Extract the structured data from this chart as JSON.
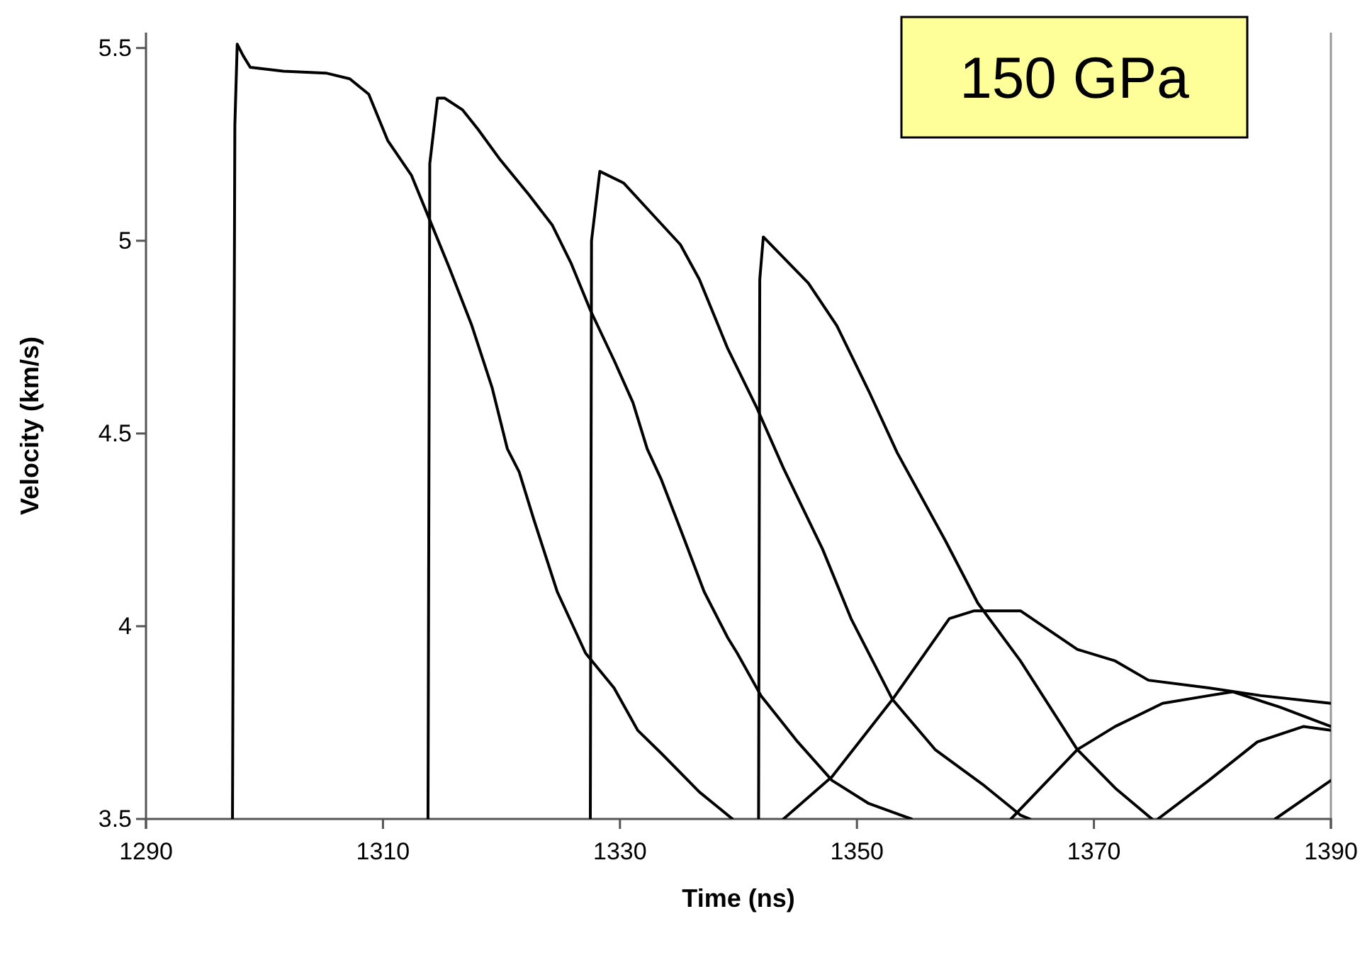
{
  "chart_data": {
    "type": "line",
    "xlabel": "Time (ns)",
    "ylabel": "Velocity (km/s)",
    "annotations": [
      "150 GPa"
    ],
    "xlim": [
      1290,
      1390
    ],
    "xticks": [
      1290,
      1310,
      1330,
      1350,
      1370,
      1390
    ],
    "ylim": [
      3.5,
      5.54
    ],
    "yticks": [
      3.5,
      {
        "value": 4,
        "label": "4"
      },
      4.5,
      {
        "value": 5,
        "label": "5"
      },
      5.5
    ],
    "grid": false,
    "marker": "none",
    "line_style": "solid",
    "series": [
      {
        "color": "#000000",
        "x": [
          1297.3,
          1297.5,
          1297.7,
          1298.2,
          1298.8,
          1301.6,
          1305.2,
          1307.2,
          1308.8,
          1310.4,
          1312.4,
          1314.0,
          1315.6,
          1317.5,
          1319.2,
          1320.5,
          1321.5,
          1322.7,
          1324.7,
          1327.1,
          1329.5,
          1331.5,
          1333.5,
          1336.7,
          1339.5,
          1341.5,
          1343.8,
          1347.9,
          1353.0,
          1357.8,
          1359.9,
          1363.8,
          1368.6,
          1371.8,
          1374.6,
          1379.7,
          1384.1,
          1390
        ],
        "values": [
          3.5,
          5.3,
          5.51,
          5.48,
          5.45,
          5.44,
          5.435,
          5.42,
          5.38,
          5.26,
          5.17,
          5.05,
          4.93,
          4.78,
          4.62,
          4.46,
          4.4,
          4.28,
          4.09,
          3.93,
          3.84,
          3.73,
          3.67,
          3.57,
          3.5,
          null,
          3.5,
          3.61,
          3.81,
          4.02,
          4.04,
          4.04,
          3.94,
          3.91,
          3.86,
          3.84,
          3.82,
          3.8
        ]
      },
      {
        "color": "#000000",
        "x": [
          1313.8,
          1313.95,
          1314.6,
          1315.2,
          1316.7,
          1318.0,
          1319.9,
          1322.3,
          1324.3,
          1325.9,
          1327.5,
          1329.5,
          1331.1,
          1332.3,
          1333.5,
          1335.5,
          1337.1,
          1339.1,
          1339.9,
          1341.9,
          1345.0,
          1347.9,
          1351.0,
          1354.6,
          1359,
          1363.0,
          1368.6,
          1371.8,
          1375.8,
          1379.7,
          1381.7,
          1385.7,
          1390
        ],
        "values": [
          3.5,
          5.2,
          5.37,
          5.37,
          5.34,
          5.29,
          5.21,
          5.12,
          5.04,
          4.94,
          4.82,
          4.69,
          4.58,
          4.46,
          4.38,
          4.22,
          4.09,
          3.97,
          3.93,
          3.82,
          3.7,
          3.6,
          3.54,
          3.5,
          null,
          3.5,
          3.68,
          3.74,
          3.8,
          3.82,
          3.83,
          3.79,
          3.74
        ]
      },
      {
        "color": "#000000",
        "x": [
          1327.5,
          1327.6,
          1328.3,
          1330.3,
          1332.7,
          1335.1,
          1336.7,
          1339.1,
          1339.9,
          1341.5,
          1343.8,
          1347.1,
          1349.5,
          1353.0,
          1356.6,
          1360.6,
          1363.8,
          1364.6,
          1370,
          1375.4,
          1379.7,
          1383.8,
          1387.7,
          1390
        ],
        "values": [
          3.5,
          5.0,
          5.18,
          5.15,
          5.07,
          4.99,
          4.9,
          4.72,
          4.67,
          4.57,
          4.41,
          4.2,
          4.02,
          3.81,
          3.68,
          3.59,
          3.51,
          3.5,
          null,
          3.5,
          3.6,
          3.7,
          3.74,
          3.73
        ]
      },
      {
        "color": "#000000",
        "x": [
          1341.7,
          1341.8,
          1342.1,
          1345.9,
          1348.3,
          1351.0,
          1353.4,
          1357.5,
          1360.2,
          1363.8,
          1368.6,
          1371.8,
          1374.9,
          1380,
          1385.3,
          1390
        ],
        "values": [
          3.5,
          4.9,
          5.01,
          4.89,
          4.78,
          4.61,
          4.45,
          4.22,
          4.06,
          3.91,
          3.68,
          3.58,
          3.5,
          null,
          3.5,
          3.6
        ]
      }
    ]
  }
}
